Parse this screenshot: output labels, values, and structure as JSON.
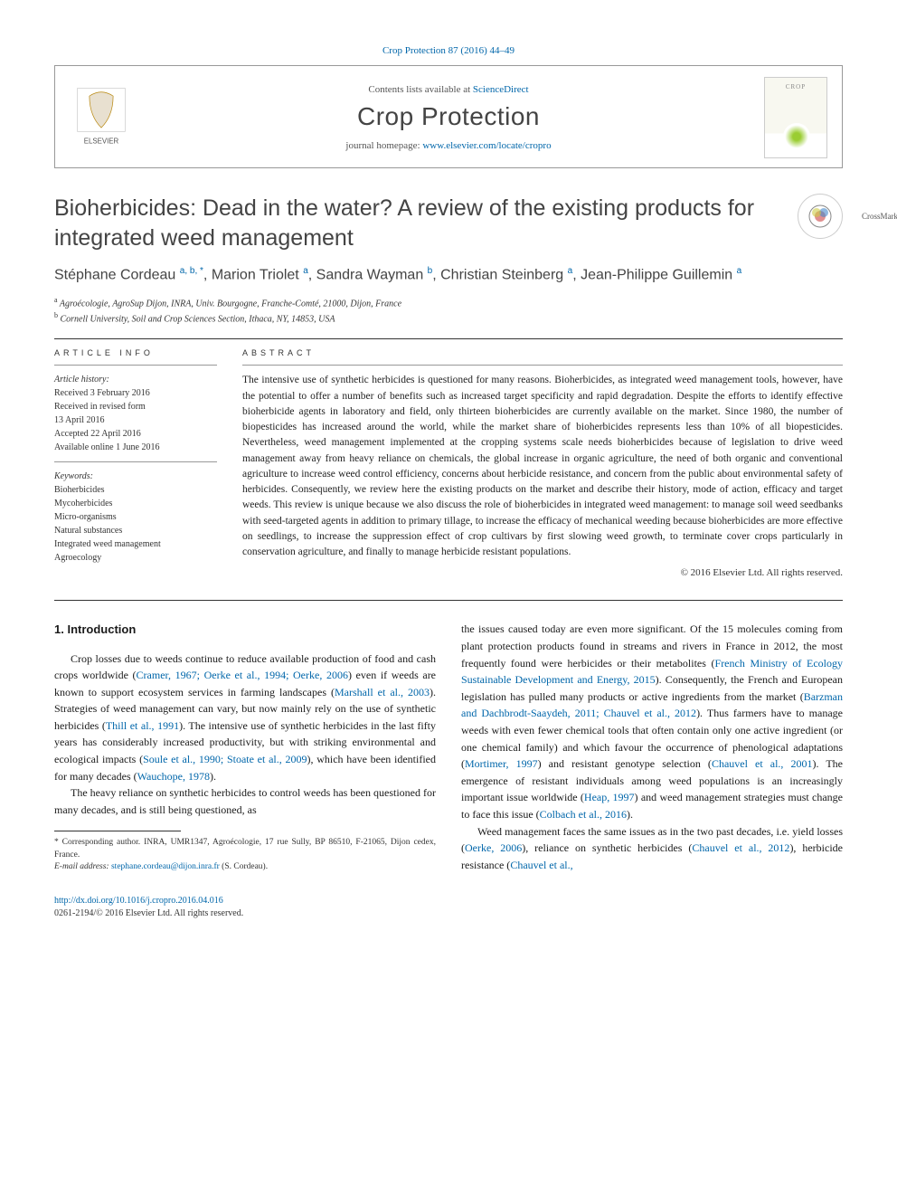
{
  "citation": "Crop Protection 87 (2016) 44–49",
  "header": {
    "contents_prefix": "Contents lists available at ",
    "contents_link": "ScienceDirect",
    "journal": "Crop Protection",
    "homepage_prefix": "journal homepage: ",
    "homepage_url": "www.elsevier.com/locate/cropro"
  },
  "title": "Bioherbicides: Dead in the water? A review of the existing products for integrated weed management",
  "authors_html": "Stéphane Cordeau <sup>a, b, *</sup>, Marion Triolet <sup>a</sup>, Sandra Wayman <sup>b</sup>, Christian Steinberg <sup>a</sup>, Jean-Philippe Guillemin <sup>a</sup>",
  "affiliations": [
    {
      "sup": "a",
      "text": "Agroécologie, AgroSup Dijon, INRA, Univ. Bourgogne, Franche-Comté, 21000, Dijon, France"
    },
    {
      "sup": "b",
      "text": "Cornell University, Soil and Crop Sciences Section, Ithaca, NY, 14853, USA"
    }
  ],
  "article_info": {
    "label": "ARTICLE INFO",
    "history_label": "Article history:",
    "history": [
      "Received 3 February 2016",
      "Received in revised form",
      "13 April 2016",
      "Accepted 22 April 2016",
      "Available online 1 June 2016"
    ],
    "keywords_label": "Keywords:",
    "keywords": [
      "Bioherbicides",
      "Mycoherbicides",
      "Micro-organisms",
      "Natural substances",
      "Integrated weed management",
      "Agroecology"
    ]
  },
  "abstract": {
    "label": "ABSTRACT",
    "text": "The intensive use of synthetic herbicides is questioned for many reasons. Bioherbicides, as integrated weed management tools, however, have the potential to offer a number of benefits such as increased target specificity and rapid degradation. Despite the efforts to identify effective bioherbicide agents in laboratory and field, only thirteen bioherbicides are currently available on the market. Since 1980, the number of biopesticides has increased around the world, while the market share of bioherbicides represents less than 10% of all biopesticides. Nevertheless, weed management implemented at the cropping systems scale needs bioherbicides because of legislation to drive weed management away from heavy reliance on chemicals, the global increase in organic agriculture, the need of both organic and conventional agriculture to increase weed control efficiency, concerns about herbicide resistance, and concern from the public about environmental safety of herbicides. Consequently, we review here the existing products on the market and describe their history, mode of action, efficacy and target weeds. This review is unique because we also discuss the role of bioherbicides in integrated weed management: to manage soil weed seedbanks with seed-targeted agents in addition to primary tillage, to increase the efficacy of mechanical weeding because bioherbicides are more effective on seedlings, to increase the suppression effect of crop cultivars by first slowing weed growth, to terminate cover crops particularly in conservation agriculture, and finally to manage herbicide resistant populations.",
    "copyright": "© 2016 Elsevier Ltd. All rights reserved."
  },
  "intro": {
    "heading": "1.  Introduction",
    "col1": [
      {
        "indent": true,
        "html": "Crop losses due to weeds continue to reduce available production of food and cash crops worldwide (<a class='ref'>Cramer, 1967; Oerke et al., 1994; Oerke, 2006</a>) even if weeds are known to support ecosystem services in farming landscapes (<a class='ref'>Marshall et al., 2003</a>). Strategies of weed management can vary, but now mainly rely on the use of synthetic herbicides (<a class='ref'>Thill et al., 1991</a>). The intensive use of synthetic herbicides in the last fifty years has considerably increased productivity, but with striking environmental and ecological impacts (<a class='ref'>Soule et al., 1990; Stoate et al., 2009</a>), which have been identified for many decades (<a class='ref'>Wauchope, 1978</a>)."
      },
      {
        "indent": true,
        "html": "The heavy reliance on synthetic herbicides to control weeds has been questioned for many decades, and is still being questioned, as"
      }
    ],
    "col2": [
      {
        "indent": false,
        "html": "the issues caused today are even more significant. Of the 15 molecules coming from plant protection products found in streams and rivers in France in 2012, the most frequently found were herbicides or their metabolites (<a class='ref'>French Ministry of Ecology Sustainable Development and Energy, 2015</a>). Consequently, the French and European legislation has pulled many products or active ingredients from the market (<a class='ref'>Barzman and Dachbrodt-Saaydeh, 2011; Chauvel et al., 2012</a>). Thus farmers have to manage weeds with even fewer chemical tools that often contain only one active ingredient (or one chemical family) and which favour the occurrence of phenological adaptations (<a class='ref'>Mortimer, 1997</a>) and resistant genotype selection (<a class='ref'>Chauvel et al., 2001</a>). The emergence of resistant individuals among weed populations is an increasingly important issue worldwide (<a class='ref'>Heap, 1997</a>) and weed management strategies must change to face this issue (<a class='ref'>Colbach et al., 2016</a>)."
      },
      {
        "indent": true,
        "html": "Weed management faces the same issues as in the two past decades, i.e. yield losses (<a class='ref'>Oerke, 2006</a>), reliance on synthetic herbicides (<a class='ref'>Chauvel et al., 2012</a>), herbicide resistance (<a class='ref'>Chauvel et al.,</a>"
      }
    ]
  },
  "footnotes": {
    "corresponding": "* Corresponding author. INRA, UMR1347, Agroécologie, 17 rue Sully, BP 86510, F-21065, Dijon cedex, France.",
    "email_label": "E-mail address: ",
    "email": "stephane.cordeau@dijon.inra.fr",
    "email_suffix": " (S. Cordeau)."
  },
  "footer": {
    "doi": "http://dx.doi.org/10.1016/j.cropro.2016.04.016",
    "issn": "0261-2194/© 2016 Elsevier Ltd. All rights reserved."
  },
  "colors": {
    "link": "#0066aa",
    "text": "#1a1a1a",
    "heading": "#444444",
    "rule": "#333333"
  }
}
